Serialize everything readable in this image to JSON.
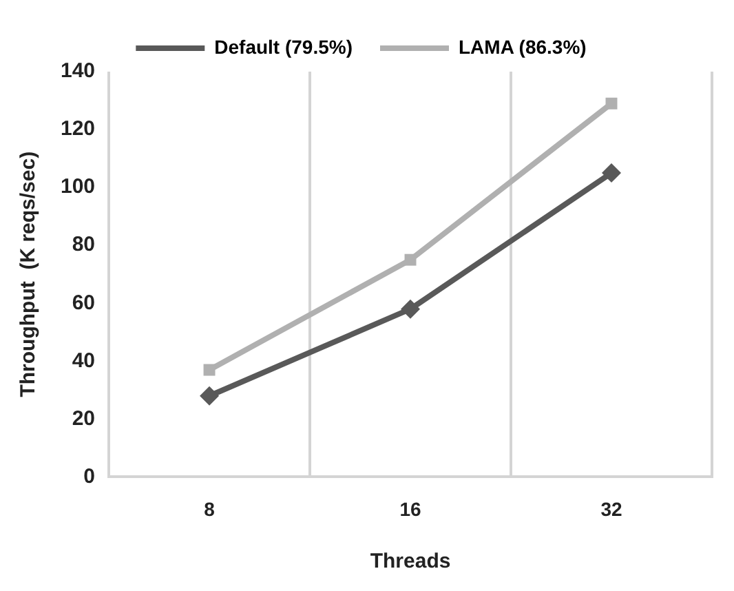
{
  "chart_data": {
    "type": "line",
    "xlabel": "Threads",
    "ylabel": "Throughput  (K reqs/sec)",
    "categories": [
      "8",
      "16",
      "32"
    ],
    "series": [
      {
        "name": "Default (79.5%)",
        "color": "#595959",
        "marker": "diamond",
        "values": [
          28,
          58,
          105
        ]
      },
      {
        "name": "LAMA (86.3%)",
        "color": "#b0b0b0",
        "marker": "square",
        "values": [
          37,
          75,
          129
        ]
      }
    ],
    "ylim": [
      0,
      140
    ],
    "yticks": [
      0,
      20,
      40,
      60,
      80,
      100,
      120,
      140
    ],
    "grid": "x",
    "legend": "top",
    "line_style": "solid"
  }
}
